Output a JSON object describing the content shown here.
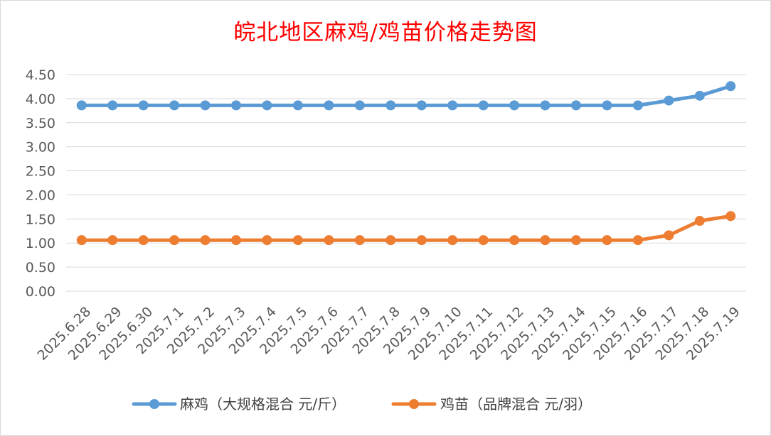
{
  "chart_data": {
    "type": "line",
    "title": "皖北地区麻鸡/鸡苗价格走势图",
    "xlabel": "",
    "ylabel": "",
    "ylim": [
      0,
      4.5
    ],
    "yticks": [
      "0.00",
      "0.50",
      "1.00",
      "1.50",
      "2.00",
      "2.50",
      "3.00",
      "3.50",
      "4.00",
      "4.50"
    ],
    "categories": [
      "2025.6.28",
      "2025.6.29",
      "2025.6.30",
      "2025.7.1",
      "2025.7.2",
      "2025.7.3",
      "2025.7.4",
      "2025.7.5",
      "2025.7.6",
      "2025.7.7",
      "2025.7.8",
      "2025.7.9",
      "2025.7.10",
      "2025.7.11",
      "2025.7.12",
      "2025.7.13",
      "2025.7.14",
      "2025.7.15",
      "2025.7.16",
      "2025.7.17",
      "2025.7.18",
      "2025.7.19"
    ],
    "series": [
      {
        "name": "麻鸡（大规格混合 元/斤）",
        "color": "#5b9bd5",
        "values": [
          3.86,
          3.86,
          3.86,
          3.86,
          3.86,
          3.86,
          3.86,
          3.86,
          3.86,
          3.86,
          3.86,
          3.86,
          3.86,
          3.86,
          3.86,
          3.86,
          3.86,
          3.86,
          3.86,
          3.96,
          4.06,
          4.26
        ]
      },
      {
        "name": "鸡苗（品牌混合 元/羽）",
        "color": "#ed7d31",
        "values": [
          1.06,
          1.06,
          1.06,
          1.06,
          1.06,
          1.06,
          1.06,
          1.06,
          1.06,
          1.06,
          1.06,
          1.06,
          1.06,
          1.06,
          1.06,
          1.06,
          1.06,
          1.06,
          1.06,
          1.16,
          1.46,
          1.56
        ]
      }
    ],
    "grid": true,
    "legend_position": "bottom"
  }
}
